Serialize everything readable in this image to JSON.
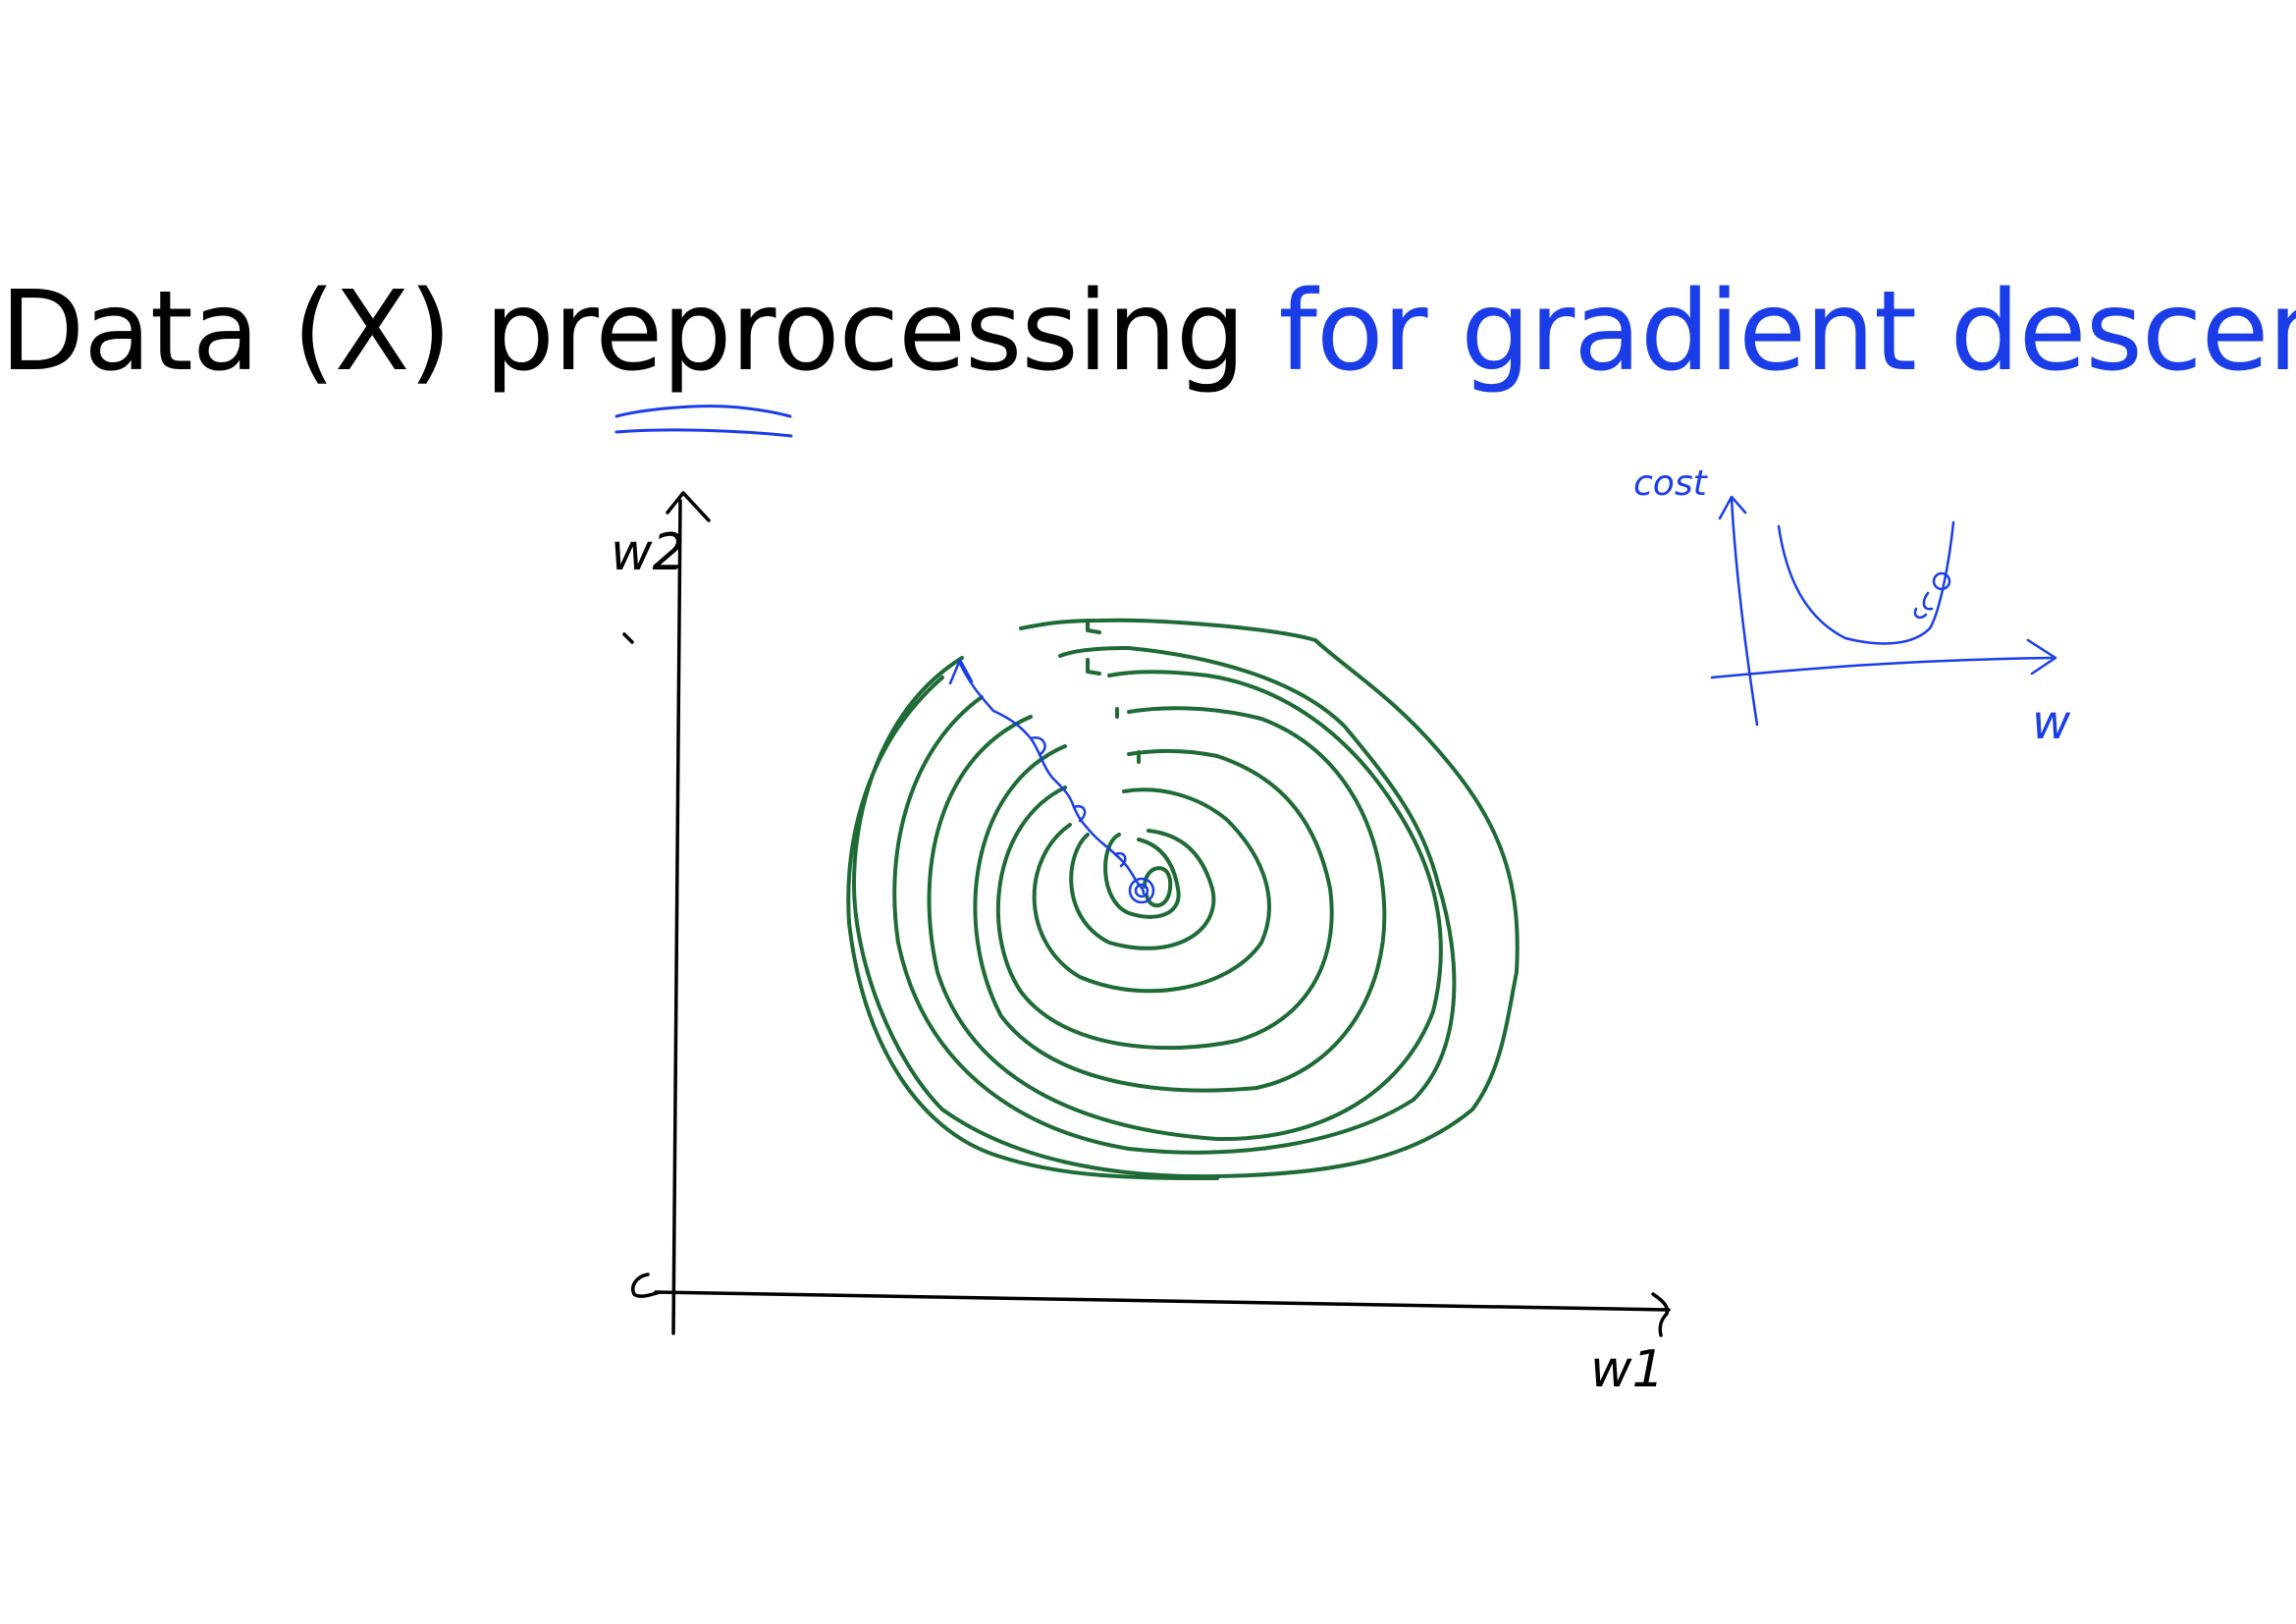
{
  "title": {
    "main": "Data (X) preprocessing",
    "sub": "for gradient descent"
  },
  "main_diagram": {
    "y_axis_label": "w2",
    "x_axis_label": "w1"
  },
  "inset_diagram": {
    "y_axis_label": "cost",
    "x_axis_label": "w"
  },
  "colors": {
    "title_main": "#000000",
    "title_sub": "#1a3de8",
    "contour": "#1e6b35",
    "ink_blue": "#1a3de8",
    "axis": "#000000"
  }
}
